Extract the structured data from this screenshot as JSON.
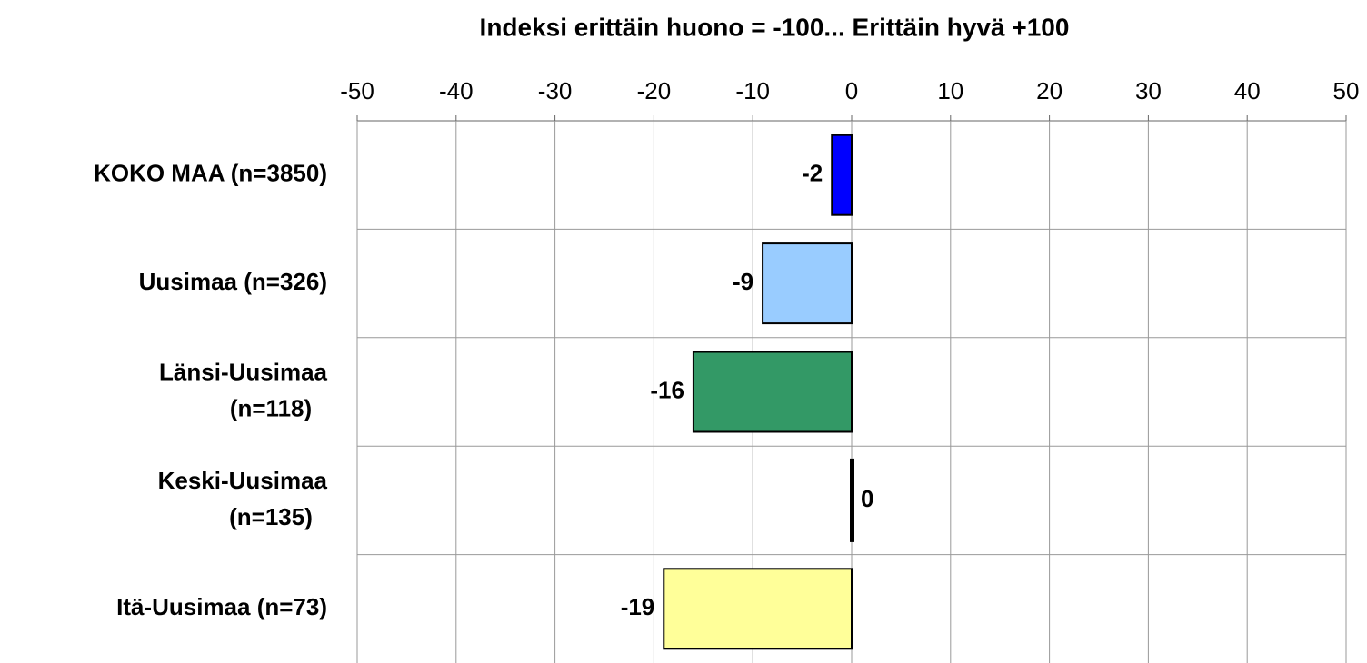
{
  "chart_data": {
    "type": "bar",
    "orientation": "horizontal",
    "title": "Indeksi erittäin huono = -100... Erittäin hyvä +100",
    "categories": [
      "KOKO MAA (n=3850)",
      "Uusimaa (n=326)",
      "Länsi-Uusimaa (n=118)",
      "Keski-Uusimaa (n=135)",
      "Itä-Uusimaa (n=73)"
    ],
    "values": [
      -2,
      -9,
      -16,
      0,
      -19
    ],
    "colors": [
      "#0000ff",
      "#99ccff",
      "#339966",
      "#000000",
      "#ffff99"
    ],
    "xlim": [
      -50,
      50
    ],
    "xticks": [
      -50,
      -40,
      -30,
      -20,
      -10,
      0,
      10,
      20,
      30,
      40,
      50
    ],
    "grid": true
  }
}
